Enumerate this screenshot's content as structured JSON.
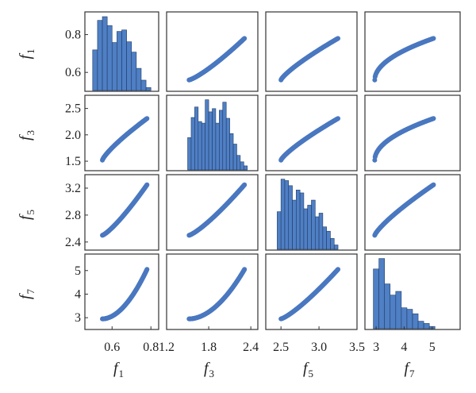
{
  "chart_data": {
    "type": "scatter-matrix",
    "variables": [
      {
        "symbol": "f",
        "subscript": "1"
      },
      {
        "symbol": "f",
        "subscript": "3"
      },
      {
        "symbol": "f",
        "subscript": "5"
      },
      {
        "symbol": "f",
        "subscript": "7"
      }
    ],
    "axes": [
      {
        "lim": [
          0.46,
          0.84
        ],
        "ticks": [
          {
            "value": 0.6,
            "label": "0.6"
          },
          {
            "value": 0.8,
            "label": "0.8"
          }
        ],
        "y_ticks": [
          {
            "value": 0.6,
            "label": "0.6"
          },
          {
            "value": 0.8,
            "label": "0.8"
          }
        ]
      },
      {
        "lim": [
          1.2,
          2.5
        ],
        "ticks": [
          {
            "value": 1.2,
            "label": "1.2"
          },
          {
            "value": 1.8,
            "label": "1.8"
          },
          {
            "value": 2.4,
            "label": "2.4"
          }
        ],
        "y_ticks": [
          {
            "value": 1.5,
            "label": "1.5"
          },
          {
            "value": 2.0,
            "label": "2.0"
          },
          {
            "value": 2.5,
            "label": "2.5"
          }
        ]
      },
      {
        "lim": [
          2.3,
          3.5
        ],
        "ticks": [
          {
            "value": 2.5,
            "label": "2.5"
          },
          {
            "value": 3.0,
            "label": "3.0"
          },
          {
            "value": 3.5,
            "label": "3.5"
          }
        ],
        "y_ticks": [
          {
            "value": 2.4,
            "label": "2.4"
          },
          {
            "value": 2.8,
            "label": "2.8"
          },
          {
            "value": 3.2,
            "label": "3.2"
          }
        ]
      },
      {
        "lim": [
          2.6,
          6.0
        ],
        "ticks": [
          {
            "value": 3,
            "label": "3"
          },
          {
            "value": 4,
            "label": "4"
          },
          {
            "value": 5,
            "label": "5"
          }
        ],
        "y_ticks": [
          {
            "value": 3,
            "label": "3"
          },
          {
            "value": 4,
            "label": "4"
          },
          {
            "value": 5,
            "label": "5"
          }
        ]
      }
    ],
    "y_limits": [
      [
        0.5,
        0.92
      ],
      [
        1.32,
        2.75
      ],
      [
        2.28,
        3.4
      ],
      [
        2.5,
        5.7
      ]
    ],
    "histograms": [
      {
        "bin_edges": [
          0.5,
          0.525,
          0.55,
          0.575,
          0.6,
          0.625,
          0.65,
          0.675,
          0.7,
          0.725,
          0.75,
          0.775,
          0.8
        ],
        "counts": [
          55,
          95,
          100,
          88,
          65,
          80,
          82,
          66,
          52,
          30,
          14,
          4
        ]
      },
      {
        "bin_edges": [
          1.5,
          1.55,
          1.6,
          1.65,
          1.7,
          1.75,
          1.8,
          1.85,
          1.9,
          1.95,
          2.0,
          2.05,
          2.1,
          2.15,
          2.2,
          2.25,
          2.3,
          2.35
        ],
        "counts": [
          40,
          65,
          78,
          60,
          58,
          87,
          72,
          76,
          58,
          74,
          84,
          64,
          45,
          32,
          18,
          10,
          5
        ]
      },
      {
        "bin_edges": [
          2.45,
          2.5,
          2.55,
          2.6,
          2.65,
          2.7,
          2.75,
          2.8,
          2.85,
          2.9,
          2.95,
          3.0,
          3.05,
          3.1,
          3.15,
          3.2,
          3.25
        ],
        "counts": [
          52,
          97,
          95,
          88,
          68,
          82,
          78,
          56,
          61,
          68,
          45,
          50,
          31,
          25,
          15,
          6
        ]
      },
      {
        "bin_edges": [
          2.9,
          3.1,
          3.3,
          3.5,
          3.7,
          3.9,
          4.1,
          4.3,
          4.5,
          4.7,
          4.9,
          5.1
        ],
        "counts": [
          80,
          94,
          60,
          45,
          50,
          28,
          26,
          20,
          10,
          7,
          3
        ]
      }
    ],
    "scatter": {
      "t_samples": 180,
      "x_ranges": [
        [
          0.55,
          0.78
        ],
        [
          1.52,
          2.31
        ],
        [
          2.5,
          3.25
        ],
        [
          2.95,
          5.05
        ]
      ],
      "shape_exponents": [
        1.0,
        1.0,
        1.0,
        1.0
      ],
      "pairs": [
        {
          "row": 0,
          "col": 1,
          "x": [
            1.52,
            2.31
          ],
          "y": [
            0.56,
            0.78
          ],
          "shape": "slight-convex"
        },
        {
          "row": 0,
          "col": 2,
          "x": [
            2.5,
            3.25
          ],
          "y": [
            0.56,
            0.78
          ],
          "shape": "slight-concave"
        },
        {
          "row": 0,
          "col": 3,
          "x": [
            2.95,
            5.05
          ],
          "y": [
            0.56,
            0.78
          ],
          "shape": "concave"
        },
        {
          "row": 1,
          "col": 0,
          "x": [
            0.55,
            0.78
          ],
          "y": [
            1.52,
            2.31
          ],
          "shape": "slight-concave"
        },
        {
          "row": 1,
          "col": 2,
          "x": [
            2.5,
            3.25
          ],
          "y": [
            1.52,
            2.31
          ],
          "shape": "slight-concave"
        },
        {
          "row": 1,
          "col": 3,
          "x": [
            2.95,
            5.05
          ],
          "y": [
            1.52,
            2.31
          ],
          "shape": "concave"
        },
        {
          "row": 2,
          "col": 0,
          "x": [
            0.55,
            0.78
          ],
          "y": [
            2.5,
            3.25
          ],
          "shape": "slight-convex"
        },
        {
          "row": 2,
          "col": 1,
          "x": [
            1.52,
            2.31
          ],
          "y": [
            2.5,
            3.25
          ],
          "shape": "slight-convex"
        },
        {
          "row": 2,
          "col": 3,
          "x": [
            2.95,
            5.05
          ],
          "y": [
            2.5,
            3.25
          ],
          "shape": "slight-concave"
        },
        {
          "row": 3,
          "col": 0,
          "x": [
            0.55,
            0.78
          ],
          "y": [
            2.95,
            5.05
          ],
          "shape": "convex"
        },
        {
          "row": 3,
          "col": 1,
          "x": [
            1.52,
            2.31
          ],
          "y": [
            2.95,
            5.05
          ],
          "shape": "convex"
        },
        {
          "row": 3,
          "col": 2,
          "x": [
            2.5,
            3.25
          ],
          "y": [
            2.95,
            5.05
          ],
          "shape": "slight-convex"
        }
      ]
    },
    "colors": {
      "marker": "#4a78c0",
      "bar_fill": "#4f7fc4",
      "bar_edge": "#1f3b66",
      "frame": "#333333"
    },
    "grid": false,
    "legend": "none"
  }
}
